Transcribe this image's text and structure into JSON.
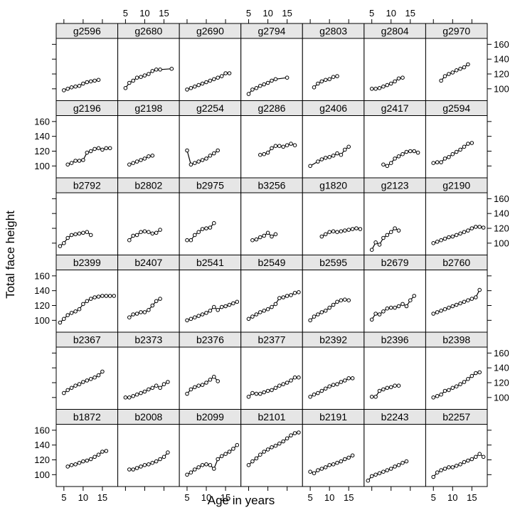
{
  "chart_data": {
    "type": "scatter",
    "layout": {
      "rows": 6,
      "cols": 7
    },
    "xlabel": "Age in years",
    "ylabel": "Total face height",
    "xlim": [
      3,
      19
    ],
    "ylim": [
      84,
      168
    ],
    "x_ticks": [
      5,
      10,
      15
    ],
    "y_ticks": [
      100,
      120,
      140,
      160
    ],
    "connect_points": true,
    "colors": {
      "strip": "#e6e6e6",
      "line": "#000000",
      "background": "#ffffff"
    },
    "panels": [
      {
        "name": "g2596",
        "x": [
          5,
          6,
          7,
          8,
          9,
          10,
          11,
          12,
          13,
          14
        ],
        "y": [
          98,
          100,
          102,
          103,
          104,
          107,
          109,
          110,
          111,
          112
        ]
      },
      {
        "name": "g2680",
        "x": [
          5,
          6,
          7,
          8,
          9,
          10,
          11,
          12,
          13,
          14,
          17
        ],
        "y": [
          101,
          108,
          111,
          115,
          116,
          118,
          120,
          124,
          126,
          126,
          127
        ]
      },
      {
        "name": "g2690",
        "x": [
          5,
          6,
          7,
          8,
          9,
          10,
          11,
          12,
          13,
          14,
          15,
          16
        ],
        "y": [
          99,
          101,
          103,
          105,
          107,
          109,
          111,
          113,
          115,
          117,
          121,
          121
        ]
      },
      {
        "name": "g2794",
        "x": [
          5,
          6,
          7,
          8,
          9,
          10,
          11,
          12,
          15
        ],
        "y": [
          93,
          99,
          101,
          104,
          106,
          108,
          111,
          113,
          115
        ]
      },
      {
        "name": "g2803",
        "x": [
          6,
          7,
          8,
          9,
          10,
          11,
          12
        ],
        "y": [
          102,
          107,
          110,
          112,
          113,
          116,
          117
        ]
      },
      {
        "name": "g2804",
        "x": [
          5,
          6,
          7,
          8,
          9,
          10,
          11,
          12,
          13
        ],
        "y": [
          100,
          100,
          101,
          103,
          105,
          107,
          110,
          114,
          115
        ]
      },
      {
        "name": "g2970",
        "x": [
          7,
          8,
          9,
          10,
          11,
          12,
          13,
          14
        ],
        "y": [
          111,
          117,
          120,
          122,
          125,
          127,
          129,
          133
        ]
      },
      {
        "name": "g2196",
        "x": [
          6,
          7,
          8,
          9,
          10,
          11,
          12,
          13,
          14,
          15,
          16,
          17
        ],
        "y": [
          102,
          104,
          107,
          107,
          108,
          118,
          120,
          123,
          124,
          122,
          124,
          124
        ]
      },
      {
        "name": "g2198",
        "x": [
          6,
          7,
          8,
          9,
          10,
          11,
          12
        ],
        "y": [
          102,
          104,
          106,
          108,
          110,
          113,
          114
        ]
      },
      {
        "name": "g2254",
        "x": [
          5,
          6,
          7,
          8,
          9,
          10,
          11,
          12,
          13
        ],
        "y": [
          121,
          102,
          104,
          106,
          108,
          110,
          114,
          117,
          121
        ]
      },
      {
        "name": "g2286",
        "x": [
          8,
          9,
          10,
          11,
          12,
          13,
          14,
          15,
          16,
          17
        ],
        "y": [
          115,
          116,
          118,
          124,
          127,
          127,
          126,
          128,
          130,
          128
        ]
      },
      {
        "name": "g2406",
        "x": [
          5,
          7,
          8,
          9,
          10,
          11,
          12,
          13,
          14,
          15
        ],
        "y": [
          100,
          106,
          109,
          111,
          112,
          114,
          117,
          115,
          122,
          126
        ]
      },
      {
        "name": "g2417",
        "x": [
          8,
          9,
          10,
          11,
          12,
          13,
          14,
          15,
          16,
          17
        ],
        "y": [
          102,
          100,
          104,
          110,
          113,
          116,
          119,
          120,
          120,
          118
        ]
      },
      {
        "name": "g2594",
        "x": [
          5,
          6,
          7,
          8,
          9,
          10,
          11,
          12,
          13,
          14,
          15
        ],
        "y": [
          104,
          105,
          105,
          110,
          112,
          116,
          119,
          122,
          126,
          130,
          131
        ]
      },
      {
        "name": "b2792",
        "x": [
          4,
          5,
          6,
          7,
          8,
          9,
          10,
          11,
          12
        ],
        "y": [
          96,
          100,
          107,
          111,
          112,
          113,
          114,
          115,
          111
        ]
      },
      {
        "name": "b2802",
        "x": [
          6,
          7,
          8,
          9,
          10,
          11,
          12,
          13,
          14
        ],
        "y": [
          104,
          110,
          111,
          115,
          116,
          115,
          113,
          114,
          118
        ]
      },
      {
        "name": "b2975",
        "x": [
          5,
          6,
          7,
          8,
          9,
          10,
          11,
          12
        ],
        "y": [
          104,
          104,
          111,
          115,
          119,
          120,
          121,
          127
        ]
      },
      {
        "name": "b3256",
        "x": [
          6,
          7,
          8,
          9,
          10,
          11,
          12
        ],
        "y": [
          104,
          105,
          108,
          110,
          114,
          109,
          112
        ]
      },
      {
        "name": "g1820",
        "x": [
          8,
          9,
          10,
          11,
          12,
          13,
          14,
          15,
          16,
          17,
          18
        ],
        "y": [
          109,
          112,
          115,
          116,
          115,
          116,
          117,
          118,
          119,
          120,
          119
        ]
      },
      {
        "name": "g2123",
        "x": [
          5,
          6,
          7,
          8,
          9,
          10,
          11,
          12
        ],
        "y": [
          91,
          101,
          98,
          107,
          111,
          115,
          120,
          117
        ]
      },
      {
        "name": "g2190",
        "x": [
          5,
          6,
          7,
          8,
          9,
          10,
          11,
          12,
          13,
          14,
          15,
          16,
          17,
          18
        ],
        "y": [
          100,
          102,
          104,
          106,
          108,
          109,
          111,
          113,
          115,
          117,
          120,
          122,
          122,
          121
        ]
      },
      {
        "name": "b2399",
        "x": [
          4,
          5,
          6,
          7,
          8,
          9,
          10,
          11,
          12,
          13,
          14,
          15,
          16,
          17,
          18
        ],
        "y": [
          97,
          102,
          107,
          110,
          112,
          115,
          122,
          126,
          129,
          131,
          132,
          133,
          133,
          133,
          133
        ]
      },
      {
        "name": "b2407",
        "x": [
          6,
          7,
          8,
          9,
          10,
          11,
          12,
          13,
          14
        ],
        "y": [
          104,
          108,
          109,
          111,
          111,
          114,
          120,
          126,
          129
        ]
      },
      {
        "name": "b2541",
        "x": [
          5,
          6,
          7,
          8,
          9,
          10,
          11,
          12,
          13,
          14,
          15,
          16,
          17,
          18
        ],
        "y": [
          100,
          102,
          104,
          106,
          108,
          110,
          113,
          118,
          114,
          118,
          119,
          121,
          123,
          125
        ]
      },
      {
        "name": "b2549",
        "x": [
          5,
          6,
          7,
          8,
          9,
          10,
          11,
          12,
          13,
          14,
          15,
          16,
          17,
          18
        ],
        "y": [
          102,
          105,
          108,
          111,
          113,
          115,
          118,
          122,
          130,
          131,
          133,
          134,
          137,
          138
        ]
      },
      {
        "name": "b2595",
        "x": [
          5,
          6,
          7,
          8,
          9,
          10,
          11,
          12,
          13,
          14,
          15
        ],
        "y": [
          100,
          105,
          108,
          111,
          113,
          117,
          121,
          125,
          127,
          128,
          127
        ]
      },
      {
        "name": "b2679",
        "x": [
          5,
          6,
          7,
          8,
          9,
          10,
          11,
          12,
          13,
          14,
          15,
          16
        ],
        "y": [
          101,
          109,
          108,
          112,
          116,
          117,
          117,
          119,
          122,
          119,
          127,
          133
        ]
      },
      {
        "name": "b2760",
        "x": [
          5,
          6,
          7,
          8,
          9,
          10,
          11,
          12,
          13,
          14,
          15,
          16,
          17
        ],
        "y": [
          109,
          111,
          113,
          115,
          117,
          119,
          121,
          123,
          125,
          127,
          129,
          131,
          141
        ]
      },
      {
        "name": "b2367",
        "x": [
          5,
          6,
          7,
          8,
          9,
          10,
          11,
          12,
          13,
          14,
          15
        ],
        "y": [
          106,
          110,
          113,
          116,
          118,
          121,
          123,
          125,
          127,
          130,
          135
        ]
      },
      {
        "name": "b2373",
        "x": [
          5,
          6,
          7,
          8,
          9,
          10,
          11,
          12,
          13,
          14,
          15,
          16
        ],
        "y": [
          100,
          100,
          102,
          104,
          106,
          108,
          111,
          113,
          116,
          113,
          118,
          121
        ]
      },
      {
        "name": "b2376",
        "x": [
          5,
          6,
          7,
          8,
          9,
          10,
          11,
          12,
          13
        ],
        "y": [
          105,
          111,
          114,
          116,
          117,
          120,
          124,
          128,
          122
        ]
      },
      {
        "name": "b2377",
        "x": [
          5,
          6,
          7,
          8,
          9,
          10,
          11,
          12,
          13,
          14,
          15,
          16,
          17,
          18
        ],
        "y": [
          101,
          106,
          105,
          105,
          107,
          109,
          110,
          113,
          116,
          118,
          120,
          123,
          127,
          127
        ]
      },
      {
        "name": "b2392",
        "x": [
          5,
          6,
          7,
          8,
          9,
          10,
          11,
          12,
          13,
          14,
          15,
          16
        ],
        "y": [
          101,
          104,
          106,
          109,
          112,
          115,
          117,
          118,
          121,
          123,
          126,
          126
        ]
      },
      {
        "name": "b2396",
        "x": [
          5,
          6,
          7,
          8,
          9,
          10,
          11,
          12
        ],
        "y": [
          101,
          101,
          109,
          111,
          113,
          114,
          116,
          116
        ]
      },
      {
        "name": "b2398",
        "x": [
          5,
          6,
          7,
          8,
          9,
          10,
          11,
          12,
          13,
          14,
          15,
          16,
          17
        ],
        "y": [
          100,
          102,
          104,
          109,
          110,
          113,
          115,
          118,
          121,
          125,
          129,
          133,
          134
        ]
      },
      {
        "name": "b1872",
        "x": [
          6,
          7,
          8,
          9,
          10,
          11,
          12,
          13,
          14,
          15,
          16
        ],
        "y": [
          111,
          113,
          114,
          116,
          118,
          119,
          121,
          124,
          127,
          131,
          132
        ]
      },
      {
        "name": "b2008",
        "x": [
          6,
          7,
          8,
          9,
          10,
          11,
          12,
          13,
          14,
          15,
          16
        ],
        "y": [
          107,
          107,
          109,
          111,
          113,
          114,
          116,
          118,
          121,
          124,
          130
        ]
      },
      {
        "name": "b2099",
        "x": [
          5,
          6,
          7,
          8,
          9,
          10,
          11,
          12,
          13,
          14,
          15,
          16,
          17,
          18
        ],
        "y": [
          100,
          103,
          107,
          110,
          113,
          114,
          113,
          108,
          121,
          125,
          128,
          131,
          135,
          140
        ]
      },
      {
        "name": "b2101",
        "x": [
          5,
          6,
          7,
          8,
          9,
          10,
          11,
          12,
          13,
          14,
          15,
          16,
          17,
          18
        ],
        "y": [
          113,
          118,
          122,
          127,
          131,
          134,
          137,
          139,
          142,
          145,
          149,
          153,
          156,
          157
        ]
      },
      {
        "name": "b2191",
        "x": [
          5,
          6,
          7,
          8,
          9,
          10,
          11,
          12,
          13,
          14,
          15,
          16
        ],
        "y": [
          104,
          102,
          106,
          108,
          110,
          113,
          114,
          116,
          118,
          121,
          123,
          126
        ]
      },
      {
        "name": "b2243",
        "x": [
          4,
          5,
          6,
          7,
          8,
          9,
          10,
          11,
          12,
          13,
          14
        ],
        "y": [
          92,
          98,
          100,
          102,
          104,
          106,
          108,
          111,
          113,
          116,
          118
        ]
      },
      {
        "name": "b2257",
        "x": [
          5,
          6,
          7,
          8,
          9,
          10,
          11,
          12,
          13,
          14,
          15,
          16,
          17,
          18
        ],
        "y": [
          97,
          103,
          106,
          108,
          110,
          110,
          112,
          114,
          117,
          119,
          121,
          124,
          128,
          124
        ]
      }
    ]
  }
}
